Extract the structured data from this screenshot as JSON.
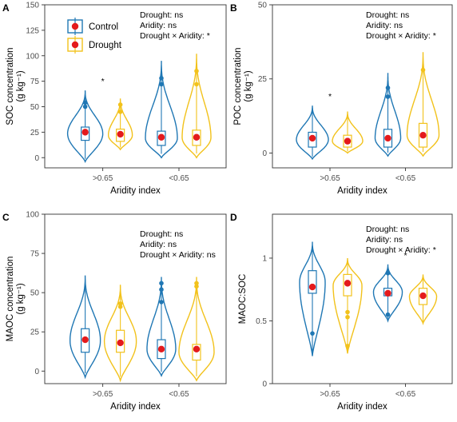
{
  "chart_data": [
    {
      "type": "violin",
      "panel_label": "A",
      "ylabel_line1": "SOC concentration",
      "ylabel_unit": "(g kg⁻¹)",
      "xlabel": "Aridity index",
      "categories": [
        ">0.65",
        "<0.65"
      ],
      "ylim": [
        -10,
        150
      ],
      "yticks": [
        0,
        25,
        50,
        75,
        100,
        125,
        150
      ],
      "stats": [
        "Drought: ns",
        "Aridity: ns",
        "Drought × Aridity: *"
      ],
      "annotations": [
        {
          "category": ">0.65",
          "text": "*"
        }
      ],
      "series": [
        {
          "name": "Control",
          "means": [
            25,
            20
          ],
          "box_low": [
            17,
            12
          ],
          "box_high": [
            30,
            26
          ],
          "y_min": [
            -4,
            0
          ],
          "y_max": [
            66,
            95
          ],
          "outliers": [
            [
              50,
              54
            ],
            [
              72,
              78
            ]
          ]
        },
        {
          "name": "Drought",
          "means": [
            23,
            20
          ],
          "box_low": [
            16,
            12
          ],
          "box_high": [
            28,
            27
          ],
          "y_min": [
            8,
            0
          ],
          "y_max": [
            58,
            102
          ],
          "outliers": [
            [
              45,
              52
            ],
            [
              72,
              85
            ]
          ]
        }
      ]
    },
    {
      "type": "violin",
      "panel_label": "B",
      "ylabel_line1": "POC concentration",
      "ylabel_unit": "(g kg⁻¹)",
      "xlabel": "Aridity index",
      "categories": [
        ">0.65",
        "<0.65"
      ],
      "ylim": [
        -5,
        50
      ],
      "yticks": [
        0,
        25,
        50
      ],
      "stats": [
        "Drought: ns",
        "Aridity: ns",
        "Drought × Aridity: *"
      ],
      "annotations": [
        {
          "category": ">0.65",
          "text": "*"
        }
      ],
      "series": [
        {
          "name": "Control",
          "means": [
            5,
            5
          ],
          "box_low": [
            2,
            2
          ],
          "box_high": [
            7,
            8
          ],
          "y_min": [
            -2,
            -1
          ],
          "y_max": [
            16,
            27
          ],
          "outliers": [
            [],
            [
              19,
              22
            ]
          ]
        },
        {
          "name": "Drought",
          "means": [
            4,
            6
          ],
          "box_low": [
            2,
            2
          ],
          "box_high": [
            6,
            10
          ],
          "y_min": [
            0,
            -1
          ],
          "y_max": [
            14,
            34
          ],
          "outliers": [
            [],
            [
              28
            ]
          ]
        }
      ]
    },
    {
      "type": "violin",
      "panel_label": "C",
      "ylabel_line1": "MAOC concentration",
      "ylabel_unit": "(g kg⁻¹)",
      "xlabel": "Aridity index",
      "categories": [
        ">0.65",
        "<0.65"
      ],
      "ylim": [
        -8,
        100
      ],
      "yticks": [
        0,
        25,
        50,
        75,
        100
      ],
      "stats": [
        "Drought: ns",
        "Aridity: ns",
        "Drought × Aridity: ns"
      ],
      "annotations": [],
      "series": [
        {
          "name": "Control",
          "means": [
            20,
            14
          ],
          "box_low": [
            12,
            8
          ],
          "box_high": [
            27,
            20
          ],
          "y_min": [
            -4,
            -3
          ],
          "y_max": [
            61,
            60
          ],
          "outliers": [
            [],
            [
              44,
              52,
              56
            ]
          ]
        },
        {
          "name": "Drought",
          "means": [
            18,
            14
          ],
          "box_low": [
            12,
            7
          ],
          "box_high": [
            26,
            17
          ],
          "y_min": [
            -6,
            -6
          ],
          "y_max": [
            55,
            60
          ],
          "outliers": [
            [
              41,
              43
            ],
            [
              54,
              56
            ]
          ]
        }
      ]
    },
    {
      "type": "violin",
      "panel_label": "D",
      "ylabel_line1": "MAOC:SOC",
      "ylabel_unit": "",
      "xlabel": "Aridity index",
      "categories": [
        ">0.65",
        "<0.65"
      ],
      "ylim": [
        0,
        1.35
      ],
      "yticks": [
        0.0,
        0.5,
        1.0
      ],
      "stats": [
        "Drought: ns",
        "Aridity: ns",
        "Drought × Aridity: *"
      ],
      "annotations": [
        {
          "category": "<0.65",
          "text": "*"
        }
      ],
      "series": [
        {
          "name": "Control",
          "means": [
            0.77,
            0.72
          ],
          "box_low": [
            0.72,
            0.7
          ],
          "box_high": [
            0.9,
            0.76
          ],
          "y_min": [
            0.22,
            0.5
          ],
          "y_max": [
            1.13,
            0.95
          ],
          "outliers": [
            [
              0.4
            ],
            [
              0.55,
              0.88
            ]
          ]
        },
        {
          "name": "Drought",
          "means": [
            0.8,
            0.7
          ],
          "box_low": [
            0.7,
            0.63
          ],
          "box_high": [
            0.87,
            0.76
          ],
          "y_min": [
            0.24,
            0.48
          ],
          "y_max": [
            1.0,
            0.87
          ],
          "outliers": [
            [
              0.3,
              0.53,
              0.57
            ],
            []
          ]
        }
      ]
    }
  ],
  "legend": [
    "Control",
    "Drought"
  ],
  "colors": {
    "Control": "#1f77b4",
    "Drought": "#f2c21b",
    "mean_point": "#e41a1c",
    "axis": "#333333"
  }
}
